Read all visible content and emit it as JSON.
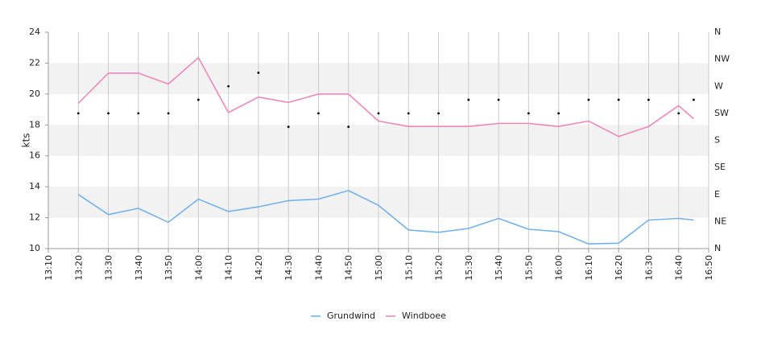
{
  "chart_data": {
    "type": "line",
    "title": "",
    "xlabel": "",
    "ylabel": "kts",
    "ylim": [
      10,
      24
    ],
    "y_ticks": [
      "10",
      "12",
      "14",
      "16",
      "18",
      "20",
      "22",
      "24"
    ],
    "x_ticks": [
      "13:10",
      "13:20",
      "13:30",
      "13:40",
      "13:50",
      "14:00",
      "14:10",
      "14:20",
      "14:30",
      "14:40",
      "14:50",
      "15:00",
      "15:10",
      "15:20",
      "15:30",
      "15:40",
      "15:50",
      "16:00",
      "16:10",
      "16:20",
      "16:30",
      "16:40",
      "16:50"
    ],
    "right_axis": {
      "labels": [
        "N",
        "NE",
        "E",
        "SE",
        "S",
        "SW",
        "W",
        "NW",
        "N"
      ],
      "range_degrees": [
        0,
        360
      ]
    },
    "x": [
      "13:20",
      "13:30",
      "13:40",
      "13:50",
      "14:00",
      "14:10",
      "14:20",
      "14:30",
      "14:40",
      "14:50",
      "15:00",
      "15:10",
      "15:20",
      "15:30",
      "15:40",
      "15:50",
      "16:00",
      "16:10",
      "16:20",
      "16:30",
      "16:40",
      "16:45"
    ],
    "series": [
      {
        "name": "Grundwind",
        "color": "#74b2ed",
        "values": [
          13.5,
          12.2,
          12.6,
          11.7,
          13.2,
          12.4,
          12.7,
          13.1,
          13.2,
          13.75,
          12.8,
          11.2,
          11.05,
          11.3,
          11.95,
          11.25,
          11.1,
          10.3,
          10.35,
          11.85,
          11.95,
          11.85
        ]
      },
      {
        "name": "Windboee",
        "color": "#ee88bb",
        "values": [
          19.4,
          21.35,
          21.35,
          20.65,
          22.35,
          18.8,
          19.8,
          19.45,
          20.0,
          20.0,
          18.25,
          17.9,
          17.9,
          17.9,
          18.1,
          18.1,
          17.9,
          18.25,
          17.25,
          17.9,
          19.25,
          18.4
        ]
      }
    ],
    "direction_points": [
      {
        "x": "13:20",
        "dir_deg": 225
      },
      {
        "x": "13:30",
        "dir_deg": 225
      },
      {
        "x": "13:40",
        "dir_deg": 225
      },
      {
        "x": "13:50",
        "dir_deg": 225
      },
      {
        "x": "14:00",
        "dir_deg": 247.5
      },
      {
        "x": "14:10",
        "dir_deg": 270
      },
      {
        "x": "14:20",
        "dir_deg": 292.5
      },
      {
        "x": "14:30",
        "dir_deg": 202.5
      },
      {
        "x": "14:40",
        "dir_deg": 225
      },
      {
        "x": "14:50",
        "dir_deg": 202.5
      },
      {
        "x": "15:00",
        "dir_deg": 225
      },
      {
        "x": "15:10",
        "dir_deg": 225
      },
      {
        "x": "15:20",
        "dir_deg": 225
      },
      {
        "x": "15:30",
        "dir_deg": 247.5
      },
      {
        "x": "15:40",
        "dir_deg": 247.5
      },
      {
        "x": "15:50",
        "dir_deg": 225
      },
      {
        "x": "16:00",
        "dir_deg": 225
      },
      {
        "x": "16:10",
        "dir_deg": 247.5
      },
      {
        "x": "16:20",
        "dir_deg": 247.5
      },
      {
        "x": "16:30",
        "dir_deg": 247.5
      },
      {
        "x": "16:40",
        "dir_deg": 225
      },
      {
        "x": "16:45",
        "dir_deg": 247.5
      }
    ],
    "grid": true,
    "legend_position": "bottom-center"
  }
}
